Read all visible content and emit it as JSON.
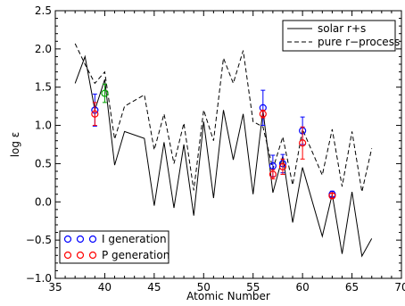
{
  "chart_data": {
    "type": "line",
    "xlabel": "Atomic Number",
    "ylabel": "log ε",
    "xlim": [
      35,
      70
    ],
    "ylim": [
      -1.0,
      2.5
    ],
    "x_ticks": [
      35,
      40,
      45,
      50,
      55,
      60,
      65,
      70
    ],
    "y_ticks": [
      -1.0,
      -0.5,
      0.0,
      0.5,
      1.0,
      1.5,
      2.0,
      2.5
    ],
    "x_tick_labels": [
      "35",
      "40",
      "45",
      "50",
      "55",
      "60",
      "65",
      "70"
    ],
    "y_tick_labels": [
      "−1.0",
      "−0.5",
      "0.0",
      "0.5",
      "1.0",
      "1.5",
      "2.0",
      "2.5"
    ],
    "grid": false,
    "legends": [
      {
        "placement": "top-right",
        "entries": [
          {
            "label": "solar r+s",
            "style": "solid"
          },
          {
            "label": "pure r−process",
            "style": "dashed"
          }
        ]
      },
      {
        "placement": "bottom-left",
        "entries": [
          {
            "label": "I generation",
            "marker": "circle",
            "color": "#0000ff"
          },
          {
            "label": "P generation",
            "marker": "circle",
            "color": "#ff0000"
          }
        ]
      }
    ],
    "series": [
      {
        "name": "solar r+s",
        "style": "solid",
        "color": "#000000",
        "x": [
          37,
          38,
          39,
          40,
          41,
          42,
          44,
          45,
          46,
          47,
          48,
          49,
          50,
          51,
          52,
          53,
          54,
          55,
          56,
          57,
          58,
          59,
          60,
          62,
          63,
          64,
          65,
          66,
          67
        ],
        "y": [
          1.55,
          1.9,
          1.2,
          1.6,
          0.48,
          0.92,
          0.83,
          -0.05,
          0.78,
          -0.08,
          0.75,
          -0.18,
          1.05,
          0.05,
          1.2,
          0.55,
          1.15,
          0.1,
          1.2,
          0.12,
          0.6,
          -0.27,
          0.45,
          -0.45,
          0.1,
          -0.68,
          0.13,
          -0.71,
          -0.48
        ]
      },
      {
        "name": "pure r−process",
        "style": "dashed",
        "color": "#000000",
        "x": [
          37,
          38,
          39,
          40,
          41,
          42,
          44,
          45,
          46,
          47,
          48,
          49,
          50,
          51,
          52,
          53,
          54,
          55,
          56,
          57,
          58,
          59,
          60,
          62,
          63,
          64,
          65,
          66,
          67
        ],
        "y": [
          2.07,
          1.8,
          1.55,
          1.7,
          0.82,
          1.25,
          1.4,
          0.68,
          1.15,
          0.5,
          1.03,
          0.15,
          1.2,
          0.8,
          1.88,
          1.55,
          1.98,
          1.05,
          0.98,
          0.43,
          0.85,
          0.22,
          0.95,
          0.35,
          0.95,
          0.2,
          0.92,
          0.13,
          0.7
        ]
      }
    ],
    "observations": [
      {
        "group": "I generation",
        "color": "#0000ff",
        "points": [
          {
            "x": 39,
            "y": 1.2,
            "err": 0.21
          },
          {
            "x": 56,
            "y": 1.23,
            "err": 0.23
          },
          {
            "x": 57,
            "y": 0.47,
            "err": 0.14
          },
          {
            "x": 58,
            "y": 0.5,
            "err": 0.12
          },
          {
            "x": 60,
            "y": 0.93,
            "err": 0.18
          },
          {
            "x": 63,
            "y": 0.1,
            "err": 0.04
          }
        ]
      },
      {
        "group": "P generation",
        "color": "#ff0000",
        "points": [
          {
            "x": 39,
            "y": 1.15,
            "err": 0.15
          },
          {
            "x": 56,
            "y": 1.15,
            "err": 0.05
          },
          {
            "x": 57,
            "y": 0.36,
            "err": 0.06
          },
          {
            "x": 58,
            "y": 0.46,
            "err": 0.1
          },
          {
            "x": 60,
            "y": 0.77,
            "err": 0.21
          },
          {
            "x": 63,
            "y": 0.08,
            "err": 0.03
          }
        ]
      },
      {
        "group": "green",
        "color": "#00a000",
        "points": [
          {
            "x": 40,
            "y": 1.42,
            "err": 0.12
          }
        ]
      }
    ]
  }
}
